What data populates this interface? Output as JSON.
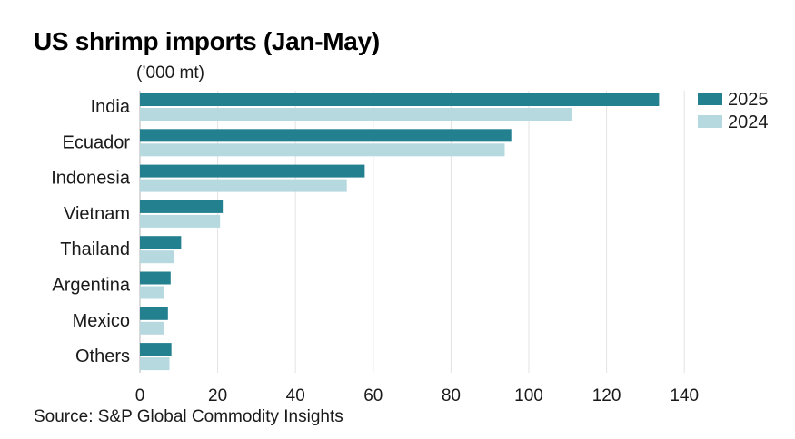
{
  "title": "US shrimp imports (Jan-May)",
  "unit_label": "(’000 mt)",
  "source": "Source: S&P Global Commodity Insights",
  "colors": {
    "series_2025": "#23808f",
    "series_2024": "#b6d9df",
    "grid": "#e3e3e3",
    "text": "#1a1a1a"
  },
  "chart_data": {
    "type": "bar",
    "orientation": "horizontal",
    "categories": [
      "India",
      "Ecuador",
      "Indonesia",
      "Vietnam",
      "Thailand",
      "Argentina",
      "Mexico",
      "Others"
    ],
    "series": [
      {
        "name": "2025",
        "values": [
          133.5,
          95.5,
          57.8,
          21.3,
          10.6,
          7.9,
          7.2,
          8.1
        ]
      },
      {
        "name": "2024",
        "values": [
          111.2,
          93.8,
          53.2,
          20.6,
          8.7,
          6.1,
          6.3,
          7.6
        ]
      }
    ],
    "xlim": [
      0,
      140
    ],
    "xticks": [
      0,
      20,
      40,
      60,
      80,
      100,
      120,
      140
    ],
    "grid": true,
    "legend_position": "top-right"
  }
}
